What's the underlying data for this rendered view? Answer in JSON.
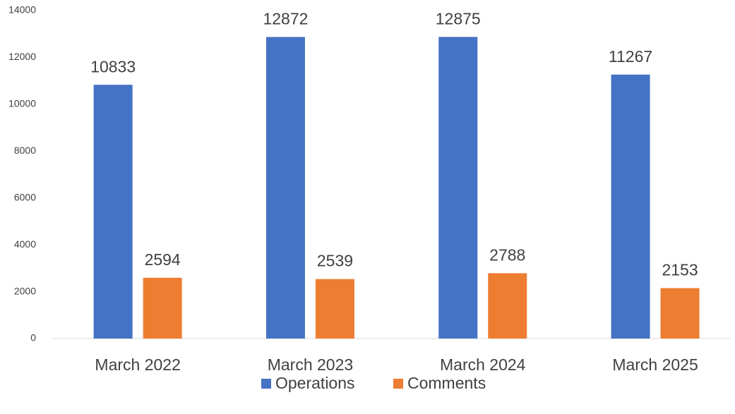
{
  "chart_data": {
    "type": "grouped_bar",
    "categories": [
      "March 2022",
      "March 2023",
      "March 2024",
      "March 2025"
    ],
    "series": [
      {
        "name": "Operations",
        "color": "#4472c4",
        "values": [
          10833,
          12872,
          12875,
          11267
        ]
      },
      {
        "name": "Comments",
        "color": "#ed7d31",
        "values": [
          2594,
          2539,
          2788,
          2153
        ]
      }
    ],
    "ylim": [
      0,
      14000
    ],
    "yticks": [
      0,
      2000,
      4000,
      6000,
      8000,
      10000,
      12000,
      14000
    ],
    "grid": false,
    "legend": "bottom"
  }
}
